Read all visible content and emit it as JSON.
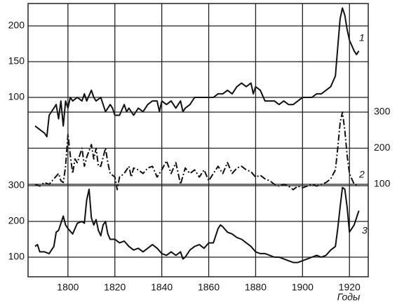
{
  "chart_data": [
    {
      "type": "line",
      "xlim": [
        1783,
        1928
      ],
      "ylim": [
        40,
        230
      ],
      "yticks": [
        100,
        150,
        200
      ],
      "tick_side": "left",
      "grid": true,
      "series": [
        {
          "name": "1",
          "color": "#111111",
          "x": [
            1786,
            1788,
            1790,
            1791,
            1792,
            1794,
            1795,
            1796,
            1797,
            1798,
            1799,
            1800,
            1801,
            1802,
            1804,
            1806,
            1807,
            1808,
            1810,
            1811,
            1812,
            1814,
            1816,
            1818,
            1819,
            1820,
            1822,
            1824,
            1825,
            1826,
            1828,
            1830,
            1832,
            1834,
            1836,
            1838,
            1839,
            1840,
            1842,
            1844,
            1846,
            1848,
            1849,
            1850,
            1852,
            1854,
            1856,
            1858,
            1860,
            1862,
            1864,
            1866,
            1868,
            1870,
            1872,
            1874,
            1876,
            1878,
            1879,
            1880,
            1882,
            1884,
            1886,
            1888,
            1890,
            1892,
            1894,
            1896,
            1898,
            1900,
            1902,
            1904,
            1906,
            1908,
            1910,
            1912,
            1914,
            1915,
            1916,
            1917,
            1918,
            1919,
            1920,
            1922,
            1923,
            1924
          ],
          "values": [
            60,
            55,
            50,
            45,
            75,
            85,
            90,
            70,
            95,
            60,
            95,
            85,
            100,
            95,
            100,
            95,
            105,
            95,
            110,
            100,
            95,
            100,
            80,
            90,
            85,
            75,
            75,
            90,
            80,
            85,
            75,
            85,
            80,
            90,
            95,
            95,
            80,
            95,
            90,
            95,
            85,
            95,
            80,
            85,
            90,
            100,
            100,
            100,
            100,
            100,
            105,
            105,
            110,
            105,
            115,
            120,
            115,
            120,
            105,
            115,
            110,
            95,
            95,
            95,
            90,
            95,
            90,
            90,
            95,
            100,
            100,
            100,
            105,
            105,
            110,
            115,
            130,
            170,
            210,
            225,
            215,
            195,
            180,
            165,
            160,
            165
          ]
        }
      ]
    },
    {
      "type": "line",
      "xlim": [
        1783,
        1928
      ],
      "ylim": [
        50,
        320
      ],
      "yticks": [
        100,
        200,
        300
      ],
      "tick_side": "right",
      "grid": true,
      "series": [
        {
          "name": "2",
          "color": "#111111",
          "dash": "9 3 2 3",
          "x": [
            1786,
            1788,
            1790,
            1792,
            1794,
            1796,
            1797,
            1798,
            1799,
            1800,
            1801,
            1802,
            1803,
            1804,
            1806,
            1807,
            1808,
            1810,
            1811,
            1812,
            1813,
            1814,
            1816,
            1817,
            1818,
            1820,
            1821,
            1822,
            1824,
            1826,
            1827,
            1828,
            1830,
            1832,
            1834,
            1836,
            1838,
            1840,
            1842,
            1844,
            1846,
            1848,
            1850,
            1852,
            1854,
            1856,
            1858,
            1860,
            1862,
            1864,
            1866,
            1868,
            1870,
            1872,
            1874,
            1876,
            1878,
            1880,
            1882,
            1884,
            1886,
            1888,
            1890,
            1892,
            1894,
            1896,
            1898,
            1900,
            1902,
            1904,
            1906,
            1908,
            1910,
            1912,
            1914,
            1915,
            1916,
            1917,
            1918,
            1919,
            1920,
            1922,
            1924
          ],
          "values": [
            100,
            95,
            105,
            100,
            115,
            130,
            110,
            105,
            150,
            240,
            180,
            130,
            170,
            160,
            200,
            150,
            175,
            210,
            170,
            200,
            150,
            150,
            200,
            160,
            130,
            120,
            85,
            120,
            130,
            150,
            120,
            145,
            140,
            130,
            145,
            150,
            120,
            140,
            165,
            130,
            160,
            100,
            145,
            130,
            140,
            120,
            140,
            110,
            130,
            150,
            130,
            160,
            130,
            145,
            150,
            140,
            135,
            120,
            125,
            115,
            110,
            100,
            95,
            100,
            95,
            85,
            95,
            90,
            95,
            100,
            95,
            100,
            105,
            115,
            140,
            200,
            270,
            300,
            250,
            180,
            130,
            100,
            95
          ]
        }
      ]
    },
    {
      "type": "line",
      "xlim": [
        1783,
        1928
      ],
      "ylim": [
        50,
        320
      ],
      "yticks": [
        100,
        200,
        300
      ],
      "tick_side": "left",
      "grid": true,
      "xticks": [
        1800,
        1820,
        1840,
        1860,
        1880,
        1900,
        1920
      ],
      "xlabel": "Годы",
      "series": [
        {
          "name": "3",
          "color": "#111111",
          "x": [
            1786,
            1787,
            1788,
            1790,
            1792,
            1794,
            1795,
            1796,
            1798,
            1799,
            1800,
            1802,
            1804,
            1806,
            1807,
            1808,
            1809,
            1810,
            1811,
            1812,
            1813,
            1814,
            1815,
            1816,
            1817,
            1818,
            1820,
            1822,
            1824,
            1826,
            1828,
            1830,
            1832,
            1834,
            1836,
            1838,
            1840,
            1842,
            1844,
            1846,
            1848,
            1849,
            1850,
            1852,
            1854,
            1856,
            1858,
            1860,
            1862,
            1864,
            1865,
            1866,
            1868,
            1870,
            1872,
            1874,
            1876,
            1878,
            1880,
            1882,
            1884,
            1886,
            1888,
            1890,
            1892,
            1894,
            1896,
            1898,
            1900,
            1902,
            1904,
            1906,
            1908,
            1910,
            1912,
            1914,
            1915,
            1916,
            1917,
            1918,
            1919,
            1920,
            1922,
            1924
          ],
          "values": [
            130,
            135,
            115,
            115,
            110,
            130,
            170,
            175,
            215,
            190,
            180,
            165,
            195,
            200,
            195,
            260,
            290,
            210,
            190,
            205,
            175,
            160,
            190,
            200,
            165,
            150,
            150,
            140,
            145,
            130,
            120,
            125,
            115,
            125,
            135,
            125,
            110,
            105,
            115,
            105,
            115,
            95,
            100,
            120,
            130,
            135,
            125,
            140,
            140,
            180,
            190,
            185,
            170,
            165,
            155,
            150,
            140,
            130,
            115,
            110,
            110,
            105,
            100,
            100,
            95,
            90,
            85,
            85,
            90,
            95,
            100,
            105,
            100,
            105,
            120,
            130,
            180,
            240,
            295,
            290,
            240,
            170,
            190,
            230
          ]
        }
      ]
    }
  ]
}
